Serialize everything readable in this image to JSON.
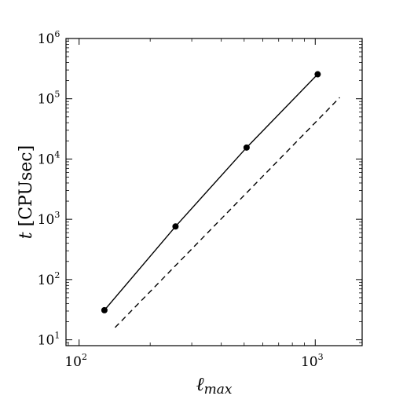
{
  "chart_data": {
    "type": "line",
    "xscale": "log",
    "yscale": "log",
    "xlim": [
      88,
      1580
    ],
    "ylim": [
      8,
      1000000
    ],
    "grid": false,
    "xlabel": {
      "base": "ℓ",
      "sub": "max"
    },
    "ylabel": {
      "symbol": "t",
      "unit": "[CPUsec]"
    },
    "x_ticks": [
      {
        "value": 100,
        "base": "10",
        "exp": "2"
      },
      {
        "value": 1000,
        "base": "10",
        "exp": "3"
      }
    ],
    "y_ticks": [
      {
        "value": 10,
        "base": "10",
        "exp": "1"
      },
      {
        "value": 100,
        "base": "10",
        "exp": "2"
      },
      {
        "value": 1000,
        "base": "10",
        "exp": "3"
      },
      {
        "value": 10000,
        "base": "10",
        "exp": "4"
      },
      {
        "value": 100000,
        "base": "10",
        "exp": "5"
      },
      {
        "value": 1000000,
        "base": "10",
        "exp": "6"
      }
    ],
    "series": [
      {
        "style": "solid-with-markers",
        "color": "#000000",
        "points": [
          {
            "x": 128,
            "y": 31
          },
          {
            "x": 256,
            "y": 760
          },
          {
            "x": 512,
            "y": 15500
          },
          {
            "x": 1024,
            "y": 255000
          }
        ]
      },
      {
        "style": "dashed",
        "color": "#000000",
        "points": [
          {
            "x": 142,
            "y": 16
          },
          {
            "x": 1270,
            "y": 105000
          }
        ]
      }
    ]
  }
}
